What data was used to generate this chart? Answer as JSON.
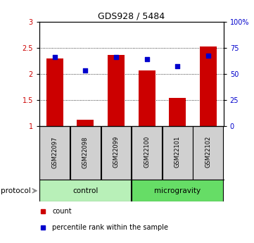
{
  "title": "GDS928 / 5484",
  "samples": [
    "GSM22097",
    "GSM22098",
    "GSM22099",
    "GSM22100",
    "GSM22101",
    "GSM22102"
  ],
  "bar_heights": [
    2.3,
    1.13,
    2.37,
    2.07,
    1.54,
    2.53
  ],
  "blue_markers": [
    2.33,
    2.07,
    2.33,
    2.28,
    2.15,
    2.35
  ],
  "ylim_left": [
    1,
    3
  ],
  "ylim_right": [
    0,
    100
  ],
  "yticks_left": [
    1.0,
    1.5,
    2.0,
    2.5,
    3.0
  ],
  "ytick_labels_left": [
    "1",
    "1.5",
    "2",
    "2.5",
    "3"
  ],
  "yticks_right_vals": [
    0,
    25,
    50,
    75,
    100
  ],
  "ytick_labels_right": [
    "0",
    "25",
    "50",
    "75",
    "100%"
  ],
  "bar_color": "#cc0000",
  "marker_color": "#0000cc",
  "control_samples": [
    0,
    1,
    2
  ],
  "microgravity_samples": [
    3,
    4,
    5
  ],
  "control_label": "control",
  "microgravity_label": "microgravity",
  "protocol_label": "protocol",
  "legend_count": "count",
  "legend_percentile": "percentile rank within the sample",
  "control_color": "#b8f0b8",
  "microgravity_color": "#66dd66",
  "sample_box_color": "#d0d0d0",
  "bar_width": 0.55,
  "grid_levels": [
    1.5,
    2.0,
    2.5
  ],
  "title_fontsize": 9,
  "tick_fontsize": 7,
  "label_fontsize": 6,
  "protocol_fontsize": 7.5
}
